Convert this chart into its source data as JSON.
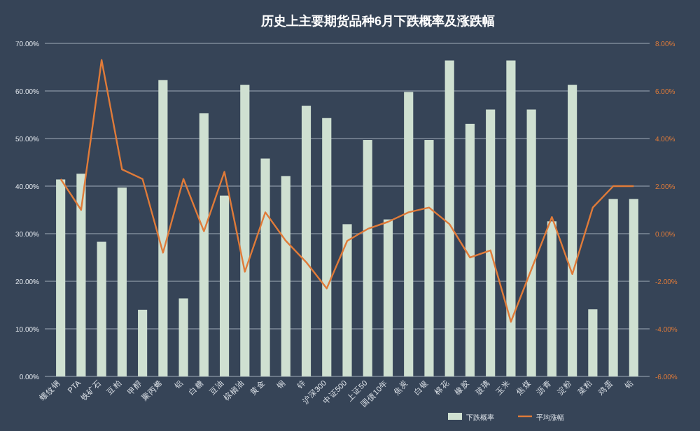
{
  "chart_data": {
    "type": "bar",
    "title": "历史上主要期货品种6月下跌概率及涨跌幅",
    "categories": [
      "螺纹钢",
      "PTA",
      "铁矿石",
      "豆粕",
      "甲醇",
      "聚丙烯",
      "铝",
      "白糖",
      "豆油",
      "棕榈油",
      "黄金",
      "铜",
      "锌",
      "沪深300",
      "中证500",
      "上证50",
      "国债10年",
      "焦炭",
      "白银",
      "棉花",
      "橡胶",
      "玻璃",
      "玉米",
      "焦煤",
      "沥青",
      "淀粉",
      "菜粕",
      "鸡蛋",
      "铅"
    ],
    "series": [
      {
        "name": "下跌概率",
        "color": "#cfe0d1",
        "values": [
          41.4,
          42.6,
          28.3,
          39.7,
          14.0,
          62.3,
          16.4,
          55.3,
          38,
          61.3,
          45.8,
          42.1,
          56.9,
          54.3,
          32,
          49.7,
          33,
          59.8,
          49.7,
          66.4,
          53.1,
          56.1,
          66.4,
          56.1,
          32.6,
          61.3,
          14.1,
          37.3,
          37.3
        ]
      },
      {
        "name": "平均涨幅",
        "type": "line",
        "axis": "y2",
        "color": "#e07b39",
        "values": [
          2.3,
          1.0,
          7.3,
          2.7,
          2.3,
          -0.8,
          2.3,
          0.1,
          2.6,
          -1.6,
          0.9,
          -0.3,
          -1.2,
          -2.3,
          -0.3,
          0.2,
          0.5,
          0.9,
          1.1,
          0.4,
          -1.0,
          -0.7,
          -3.7,
          -1.5,
          0.7,
          -1.7,
          1.1,
          2.0,
          2.0
        ]
      }
    ],
    "ylim": [
      0,
      70
    ],
    "yticks": [
      {
        "value": 0,
        "label": "0.00%"
      },
      {
        "value": 10,
        "label": "10.00%"
      },
      {
        "value": 20,
        "label": "20.00%"
      },
      {
        "value": 30,
        "label": "30.00%"
      },
      {
        "value": 40,
        "label": "40.00%"
      },
      {
        "value": 50,
        "label": "50.00%"
      },
      {
        "value": 60,
        "label": "60.00%"
      },
      {
        "value": 70,
        "label": "70.00%"
      }
    ],
    "y2lim": [
      -6,
      8
    ],
    "y2ticks": [
      {
        "value": -6,
        "label": "-6.00%"
      },
      {
        "value": -4,
        "label": "-4.00%"
      },
      {
        "value": -2,
        "label": "-2.00%"
      },
      {
        "value": 0,
        "label": "0.00%"
      },
      {
        "value": 2,
        "label": "2.00%"
      },
      {
        "value": 4,
        "label": "4.00%"
      },
      {
        "value": 6,
        "label": "6.00%"
      },
      {
        "value": 8,
        "label": "8.00%"
      }
    ],
    "grid": "y",
    "legend": "bottom right"
  }
}
